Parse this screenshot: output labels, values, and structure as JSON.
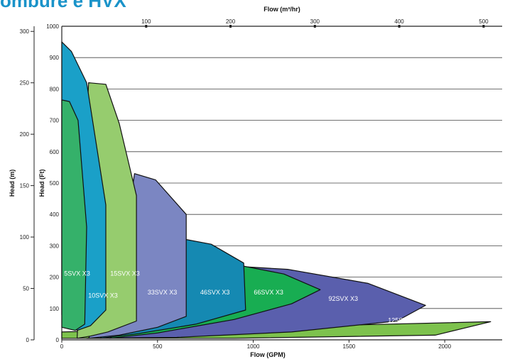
{
  "page": {
    "title": "ombure e HVX"
  },
  "colors": {
    "teal": "#1aa0c8",
    "green": "#35b16a",
    "light_green": "#96cc6e",
    "lavender": "#7b86c2",
    "ocean": "#1589b2",
    "emerald": "#18ad52",
    "indigo": "#5a5fad",
    "lime": "#7dc24d"
  },
  "chart_data": {
    "type": "area",
    "axes": {
      "x_bottom": {
        "label": "Flow (GPM)",
        "range": [
          0,
          2300
        ],
        "ticks": [
          0,
          500,
          1000,
          1500,
          2000
        ]
      },
      "x_top": {
        "label": "Flow (m³/hr)",
        "range": [
          0,
          522
        ],
        "ticks": [
          100,
          200,
          300,
          400,
          500
        ]
      },
      "y_left_outer": {
        "label": "Head (m)",
        "range": [
          0,
          305
        ],
        "ticks": [
          0,
          50,
          100,
          150,
          200,
          250,
          300
        ]
      },
      "y_left_inner": {
        "label": "Head (Ft)",
        "range": [
          0,
          1000
        ],
        "ticks": [
          0,
          100,
          200,
          300,
          400,
          500,
          600,
          700,
          800,
          900,
          1000
        ]
      }
    },
    "grid": true,
    "legend": "none",
    "series": [
      {
        "name": "125SVX X3",
        "label_pos": [
          1790,
          55
        ],
        "polygon": [
          [
            0,
            5
          ],
          [
            0,
            25
          ],
          [
            2240,
            58
          ],
          [
            1950,
            15
          ],
          [
            900,
            5
          ]
        ]
      },
      {
        "name": "92SVX X3",
        "label_pos": [
          1470,
          125
        ],
        "polygon": [
          [
            130,
            5
          ],
          [
            300,
            18
          ],
          [
            900,
            235
          ],
          [
            1180,
            225
          ],
          [
            1600,
            180
          ],
          [
            1900,
            110
          ],
          [
            1750,
            60
          ],
          [
            1200,
            25
          ],
          [
            600,
            8
          ]
        ]
      },
      {
        "name": "66SVX X3",
        "label_pos": [
          1080,
          145
        ],
        "polygon": [
          [
            250,
            5
          ],
          [
            720,
            180
          ],
          [
            950,
            235
          ],
          [
            1160,
            210
          ],
          [
            1350,
            160
          ],
          [
            1200,
            115
          ],
          [
            900,
            65
          ],
          [
            500,
            22
          ]
        ]
      },
      {
        "name": "46SVX X3",
        "label_pos": [
          800,
          145
        ],
        "polygon": [
          [
            200,
            5
          ],
          [
            420,
            120
          ],
          [
            650,
            320
          ],
          [
            780,
            305
          ],
          [
            950,
            245
          ],
          [
            960,
            95
          ],
          [
            700,
            50
          ],
          [
            400,
            20
          ]
        ]
      },
      {
        "name": "33SVX X3",
        "label_pos": [
          525,
          145
        ],
        "polygon": [
          [
            140,
            5
          ],
          [
            300,
            200
          ],
          [
            380,
            530
          ],
          [
            490,
            510
          ],
          [
            650,
            400
          ],
          [
            650,
            75
          ],
          [
            500,
            40
          ],
          [
            300,
            15
          ]
        ]
      },
      {
        "name": "15SVX X3",
        "label_pos": [
          330,
          205
        ],
        "polygon": [
          [
            80,
            5
          ],
          [
            140,
            820
          ],
          [
            230,
            815
          ],
          [
            300,
            690
          ],
          [
            390,
            460
          ],
          [
            390,
            60
          ],
          [
            240,
            25
          ],
          [
            150,
            12
          ]
        ]
      },
      {
        "name": "10SVX X3",
        "label_pos": [
          215,
          135
        ],
        "polygon": [
          [
            0,
            80
          ],
          [
            0,
            950
          ],
          [
            50,
            920
          ],
          [
            130,
            820
          ],
          [
            230,
            430
          ],
          [
            230,
            95
          ],
          [
            150,
            45
          ],
          [
            80,
            30
          ]
        ]
      },
      {
        "name": "5SVX X3",
        "label_pos": [
          80,
          205
        ],
        "polygon": [
          [
            0,
            40
          ],
          [
            0,
            765
          ],
          [
            40,
            760
          ],
          [
            85,
            700
          ],
          [
            130,
            360
          ],
          [
            120,
            50
          ],
          [
            70,
            30
          ]
        ]
      }
    ]
  }
}
